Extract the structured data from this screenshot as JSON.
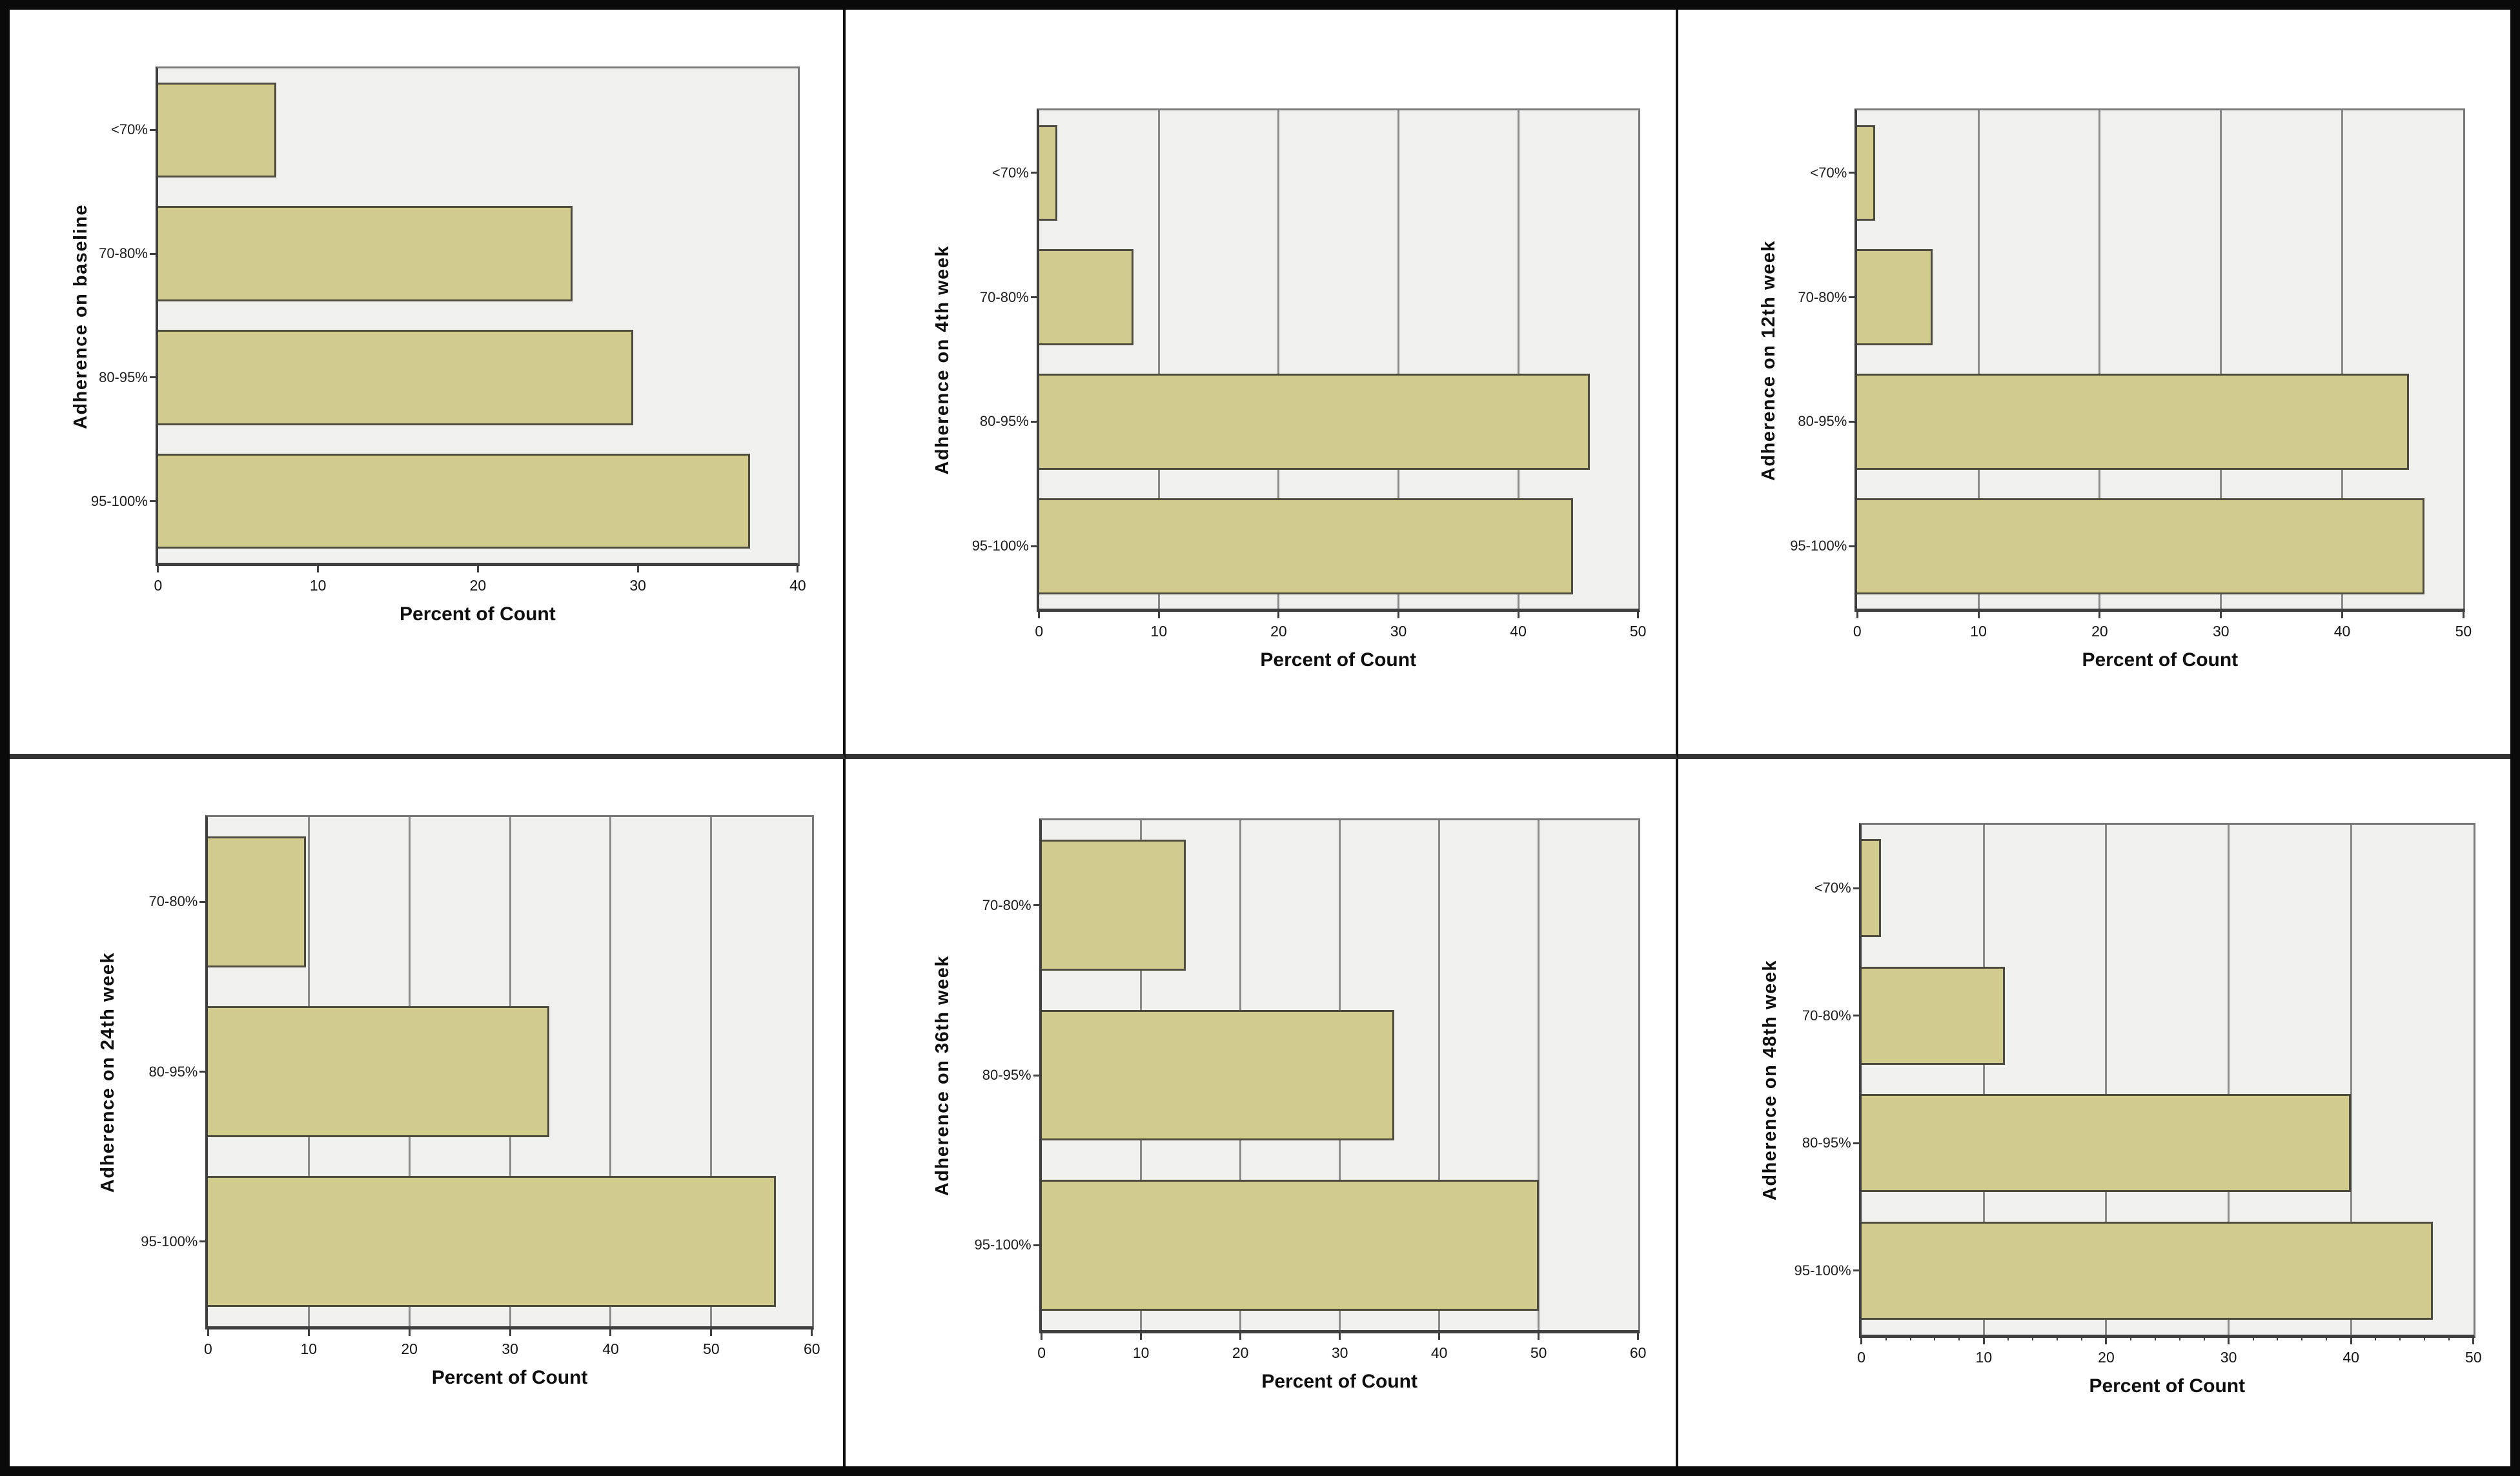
{
  "figure": {
    "description": "Six-panel bar chart figure of medication adherence distribution over time",
    "outer_border_color": "#0a0a0a",
    "divider_color": "#333333",
    "background": "#ffffff"
  },
  "colors": {
    "bar_fill": "#d2cb8e",
    "bar_border": "#4c4b3e",
    "plot_background": "#f0f0ee",
    "gridline": "#8a8a8a",
    "axis_line": "#3f3f3f",
    "text": "#141414"
  },
  "chart_data": [
    {
      "type": "bar",
      "orientation": "horizontal",
      "ylabel": "Adherence on baseline",
      "xlabel": "Percent of Count",
      "categories": [
        "<70%",
        "70-80%",
        "80-95%",
        "95-100%"
      ],
      "values": [
        7.4,
        25.9,
        29.7,
        37.0
      ],
      "xlim": [
        0,
        40
      ],
      "xticks": [
        0,
        10,
        20,
        30,
        40
      ],
      "grid": false,
      "minor_tick_interval": null,
      "legend": "none"
    },
    {
      "type": "bar",
      "orientation": "horizontal",
      "ylabel": "Adherence on 4th week",
      "xlabel": "Percent of Count",
      "categories": [
        "<70%",
        "70-80%",
        "80-95%",
        "95-100%"
      ],
      "values": [
        1.5,
        7.9,
        46.0,
        44.6
      ],
      "xlim": [
        0,
        50
      ],
      "xticks": [
        0,
        10,
        20,
        30,
        40,
        50
      ],
      "grid": true,
      "minor_tick_interval": null,
      "legend": "none"
    },
    {
      "type": "bar",
      "orientation": "horizontal",
      "ylabel": "Adherence on 12th week",
      "xlabel": "Percent of Count",
      "categories": [
        "<70%",
        "70-80%",
        "80-95%",
        "95-100%"
      ],
      "values": [
        1.5,
        6.2,
        45.5,
        46.8
      ],
      "xlim": [
        0,
        50
      ],
      "xticks": [
        0,
        10,
        20,
        30,
        40,
        50
      ],
      "grid": true,
      "minor_tick_interval": null,
      "legend": "none"
    },
    {
      "type": "bar",
      "orientation": "horizontal",
      "ylabel": "Adherence on 24th week",
      "xlabel": "Percent of Count",
      "categories": [
        "70-80%",
        "80-95%",
        "95-100%"
      ],
      "values": [
        9.7,
        33.9,
        56.4
      ],
      "xlim": [
        0,
        60
      ],
      "xticks": [
        0,
        10,
        20,
        30,
        40,
        50,
        60
      ],
      "grid": true,
      "minor_tick_interval": null,
      "legend": "none"
    },
    {
      "type": "bar",
      "orientation": "horizontal",
      "ylabel": "Adherence on 36th week",
      "xlabel": "Percent of Count",
      "categories": [
        "70-80%",
        "80-95%",
        "95-100%"
      ],
      "values": [
        14.5,
        35.5,
        50.0
      ],
      "xlim": [
        0,
        60
      ],
      "xticks": [
        0,
        10,
        20,
        30,
        40,
        50,
        60
      ],
      "grid": true,
      "minor_tick_interval": null,
      "legend": "none"
    },
    {
      "type": "bar",
      "orientation": "horizontal",
      "ylabel": "Adherence on 48th week",
      "xlabel": "Percent of Count",
      "categories": [
        "<70%",
        "70-80%",
        "80-95%",
        "95-100%"
      ],
      "values": [
        1.6,
        11.7,
        40.0,
        46.7
      ],
      "xlim": [
        0,
        50
      ],
      "xticks": [
        0,
        10,
        20,
        30,
        40,
        50
      ],
      "grid": true,
      "minor_tick_interval": 2,
      "legend": "none"
    }
  ]
}
